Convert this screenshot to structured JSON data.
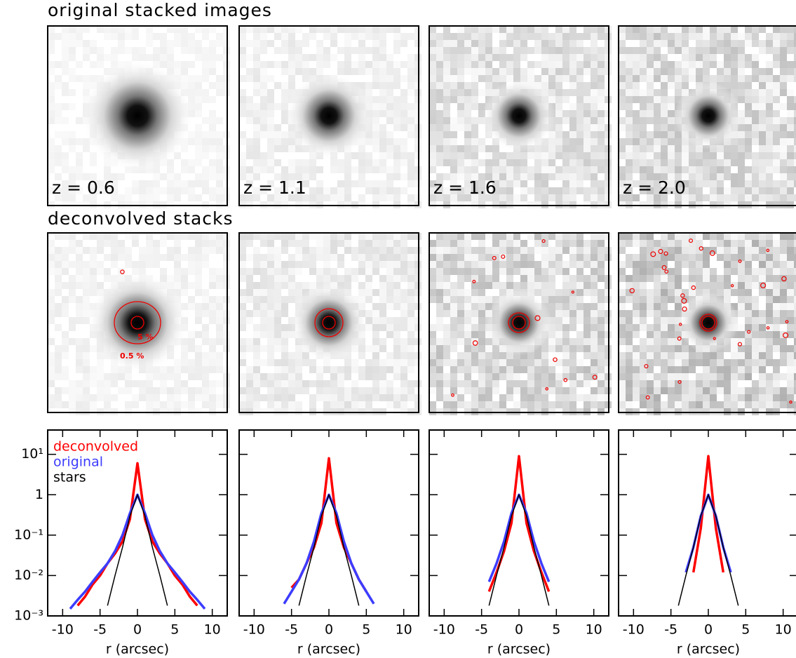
{
  "figure": {
    "original_title": "original stacked images",
    "deconvolved_title": "deconvolved stacks",
    "redshift_labels": [
      "z = 0.6",
      "z = 1.1",
      "z = 1.6",
      "z = 2.0"
    ],
    "contour_labels": [
      "5 %",
      "0.5 %"
    ]
  },
  "chart_data": [
    {
      "type": "line",
      "log_y": true,
      "legend": "upper left",
      "xlabel": "r (arcsec)",
      "xlim": [
        -12,
        12
      ],
      "ylim": [
        0.001,
        40
      ],
      "xticks": [
        -10,
        -5,
        0,
        5,
        10
      ],
      "yticks": [
        {
          "value": 0.001,
          "label": "10⁻³"
        },
        {
          "value": 0.01,
          "label": "10⁻²"
        },
        {
          "value": 0.1,
          "label": "10⁻¹"
        },
        1,
        {
          "value": 10,
          "label": "10¹"
        }
      ],
      "x": [
        -9,
        -8,
        -7,
        -6,
        -5,
        -4,
        -3,
        -2,
        -1,
        0,
        1,
        2,
        3,
        4,
        5,
        6,
        7,
        8,
        9
      ],
      "series": [
        {
          "name": "deconvolved",
          "color": "#ff0000",
          "values": [
            null,
            0.0018,
            0.003,
            0.006,
            0.01,
            0.02,
            0.035,
            0.07,
            0.25,
            6,
            0.25,
            0.07,
            0.035,
            0.02,
            0.01,
            0.006,
            0.003,
            0.0018,
            null
          ]
        },
        {
          "name": "original",
          "color": "#3c3cff",
          "values": [
            0.0015,
            0.0025,
            0.004,
            0.007,
            0.012,
            0.02,
            0.04,
            0.1,
            0.35,
            1,
            0.35,
            0.1,
            0.04,
            0.02,
            0.012,
            0.007,
            0.004,
            0.0025,
            0.0015
          ]
        },
        {
          "name": "stars",
          "color": "#000000",
          "values": [
            null,
            null,
            null,
            null,
            null,
            0.0018,
            0.01,
            0.05,
            0.3,
            1,
            0.3,
            0.05,
            0.01,
            0.0018,
            null,
            null,
            null,
            null,
            null
          ]
        }
      ]
    },
    {
      "type": "line",
      "log_y": true,
      "xlabel": "r (arcsec)",
      "xlim": [
        -12,
        12
      ],
      "ylim": [
        0.001,
        40
      ],
      "xticks": [
        -10,
        -5,
        0,
        5,
        10
      ],
      "yticks": [
        0.001,
        0.01,
        0.1,
        1,
        10
      ],
      "x": [
        -6,
        -5,
        -4,
        -3,
        -2,
        -1,
        0,
        1,
        2,
        3,
        4,
        5,
        6
      ],
      "series": [
        {
          "color": "#ff0000",
          "values": [
            null,
            0.005,
            0.008,
            0.02,
            0.05,
            0.2,
            8,
            0.2,
            0.05,
            0.02,
            0.008,
            0.004,
            null
          ]
        },
        {
          "color": "#3c3cff",
          "values": [
            0.002,
            0.004,
            0.008,
            0.02,
            0.07,
            0.35,
            1,
            0.35,
            0.07,
            0.02,
            0.008,
            0.004,
            0.002
          ]
        },
        {
          "color": "#000000",
          "values": [
            null,
            null,
            0.0018,
            0.01,
            0.05,
            0.3,
            1,
            0.3,
            0.05,
            0.01,
            0.0018,
            null,
            null
          ]
        }
      ]
    },
    {
      "type": "line",
      "log_y": true,
      "xlabel": "r (arcsec)",
      "xlim": [
        -12,
        12
      ],
      "ylim": [
        0.001,
        40
      ],
      "xticks": [
        -10,
        -5,
        0,
        5,
        10
      ],
      "yticks": [
        0.001,
        0.01,
        0.1,
        1,
        10
      ],
      "x": [
        -4,
        -3,
        -2,
        -1,
        0,
        1,
        2,
        3,
        4
      ],
      "series": [
        {
          "color": "#ff0000",
          "values": [
            0.004,
            0.012,
            0.04,
            0.2,
            9,
            0.2,
            0.04,
            0.012,
            0.004
          ]
        },
        {
          "color": "#3c3cff",
          "values": [
            0.007,
            0.02,
            0.07,
            0.35,
            1,
            0.35,
            0.07,
            0.02,
            0.007
          ]
        },
        {
          "color": "#000000",
          "values": [
            0.0018,
            0.01,
            0.05,
            0.3,
            1,
            0.3,
            0.05,
            0.01,
            0.0018
          ]
        }
      ]
    },
    {
      "type": "line",
      "log_y": true,
      "xlabel": "r (arcsec)",
      "xlim": [
        -12,
        12
      ],
      "ylim": [
        0.001,
        40
      ],
      "xticks": [
        -10,
        -5,
        0,
        5,
        10
      ],
      "yticks": [
        0.001,
        0.01,
        0.1,
        1,
        10
      ],
      "x": [
        -4,
        -3,
        -2,
        -1,
        0,
        1,
        2,
        3,
        4
      ],
      "series": [
        {
          "color": "#ff0000",
          "values": [
            null,
            null,
            0.012,
            0.15,
            9,
            0.15,
            0.012,
            null,
            null
          ]
        },
        {
          "color": "#3c3cff",
          "values": [
            null,
            0.012,
            0.05,
            0.3,
            1,
            0.3,
            0.05,
            0.012,
            null
          ]
        },
        {
          "color": "#000000",
          "values": [
            0.0018,
            0.01,
            0.05,
            0.3,
            1,
            0.3,
            0.05,
            0.01,
            0.0018
          ]
        }
      ]
    }
  ]
}
